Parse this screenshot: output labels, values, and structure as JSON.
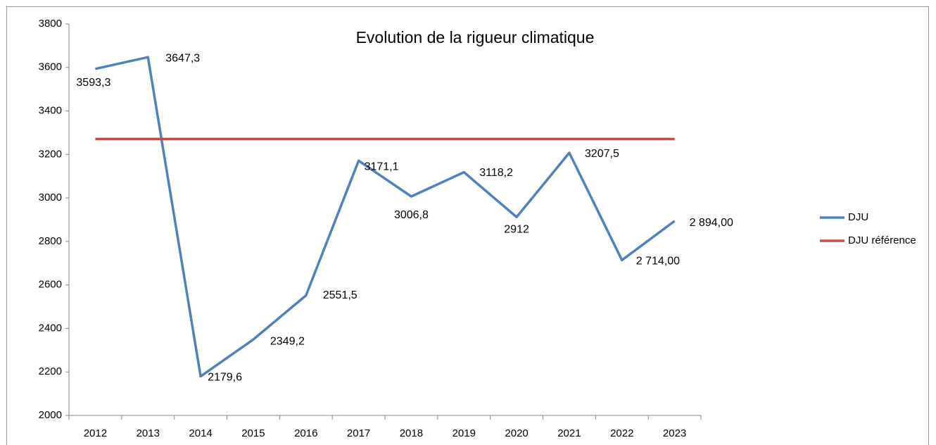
{
  "chart_data": {
    "type": "line",
    "title": "Evolution de la rigueur climatique",
    "categories": [
      "2012",
      "2013",
      "2014",
      "2015",
      "2016",
      "2017",
      "2018",
      "2019",
      "2020",
      "2021",
      "2022",
      "2023"
    ],
    "series": [
      {
        "name": "DJU",
        "color": "#4f81bd",
        "values": [
          3593.3,
          3647.3,
          2179.6,
          2349.2,
          2551.5,
          3171.1,
          3006.8,
          3118.2,
          2912,
          3207.5,
          2714,
          2894
        ],
        "value_labels": [
          "3593,3",
          "3647,3",
          "2179,6",
          "2349,2",
          "2551,5",
          "3171,1",
          "3006,8",
          "3118,2",
          "2912",
          "3207,5",
          "2 714,00",
          "2 894,00"
        ]
      },
      {
        "name": "DJU référence",
        "color": "#c0504d",
        "values": [
          3271,
          3271,
          3271,
          3271,
          3271,
          3271,
          3271,
          3271,
          3271,
          3271,
          3271,
          3271
        ]
      }
    ],
    "ylim": [
      2000,
      3800
    ],
    "yticks": [
      2000,
      2200,
      2400,
      2600,
      2800,
      3000,
      3200,
      3400,
      3600,
      3800
    ],
    "grid": false,
    "legend": "right"
  }
}
